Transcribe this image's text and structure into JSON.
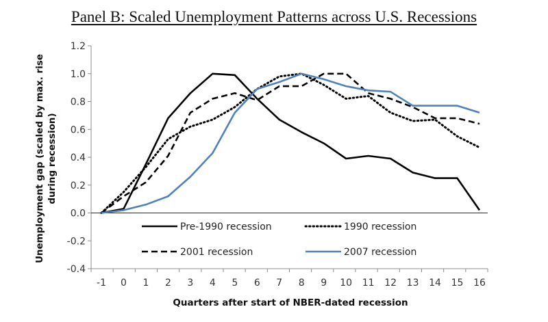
{
  "chart_data": {
    "type": "line",
    "title": "Panel B:  Scaled Unemployment Patterns across U.S. Recessions",
    "xlabel": "Quarters after start of NBER-dated recession",
    "ylabel_lines": [
      "Unemployment gap (scaled by max. rise",
      "during recession)"
    ],
    "x": [
      -1,
      0,
      1,
      2,
      3,
      4,
      5,
      6,
      7,
      8,
      9,
      10,
      11,
      12,
      13,
      14,
      15,
      16
    ],
    "xlim": [
      -1,
      16
    ],
    "ylim": [
      -0.4,
      1.2
    ],
    "yticks": [
      -0.4,
      -0.2,
      0.0,
      0.2,
      0.4,
      0.6,
      0.8,
      1.0,
      1.2
    ],
    "ytick_labels": [
      "-0.4",
      "-0.2",
      "0.0",
      "0.2",
      "0.4",
      "0.6",
      "0.8",
      "1.0",
      "1.2"
    ],
    "xtick_labels": [
      "-1",
      "0",
      "1",
      "2",
      "3",
      "4",
      "5",
      "6",
      "7",
      "8",
      "9",
      "10",
      "11",
      "12",
      "13",
      "14",
      "15",
      "16"
    ],
    "grid": false,
    "legend_position": "bottom-center-inside",
    "series": [
      {
        "name": "Pre-1990 recession",
        "style": "solid",
        "color": "#000000",
        "values": [
          0.0,
          0.03,
          0.35,
          0.68,
          0.86,
          1.0,
          0.99,
          0.82,
          0.67,
          0.58,
          0.5,
          0.39,
          0.41,
          0.39,
          0.29,
          0.25,
          0.25,
          0.02
        ]
      },
      {
        "name": "1990 recession",
        "style": "dotted",
        "color": "#000000",
        "values": [
          0.0,
          0.15,
          0.33,
          0.53,
          0.62,
          0.67,
          0.76,
          0.89,
          0.98,
          1.0,
          0.92,
          0.82,
          0.84,
          0.72,
          0.66,
          0.67,
          0.55,
          0.47
        ]
      },
      {
        "name": "2001 recession",
        "style": "dashed",
        "color": "#000000",
        "values": [
          0.0,
          0.12,
          0.22,
          0.41,
          0.72,
          0.82,
          0.86,
          0.81,
          0.91,
          0.91,
          1.0,
          1.0,
          0.86,
          0.82,
          0.76,
          0.68,
          0.68,
          0.64
        ]
      },
      {
        "name": "2007 recession",
        "style": "solid",
        "color": "#4f81bd",
        "values": [
          0.0,
          0.02,
          0.06,
          0.12,
          0.26,
          0.43,
          0.72,
          0.89,
          0.94,
          1.0,
          0.96,
          0.91,
          0.88,
          0.87,
          0.77,
          0.77,
          0.77,
          0.72
        ]
      }
    ]
  }
}
